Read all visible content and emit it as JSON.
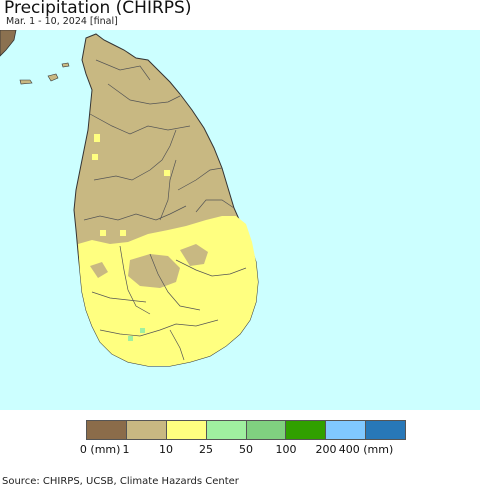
{
  "header": {
    "title": "Precipitation (CHIRPS)",
    "subtitle": "Mar. 1 - 10, 2024 [final]"
  },
  "map": {
    "sea_color": "#ccffff",
    "land_colors": {
      "dry_0_1mm": "#c8b882",
      "moist_10_25mm": "#ffff80",
      "green_25_50mm": "#a0f0a0",
      "mainland_india_lt1": "#8b7150"
    },
    "boundary_color": "#444444"
  },
  "legend": {
    "colors": [
      "#8b6c4a",
      "#c8b882",
      "#ffff80",
      "#a0f0a0",
      "#80d080",
      "#30a000",
      "#80c8ff",
      "#2878b8"
    ],
    "labels": [
      "0 (mm)",
      "1",
      "10",
      "25",
      "50",
      "100",
      "200",
      "400 (mm)"
    ]
  },
  "footer": {
    "source": "Source: CHIRPS, UCSB, Climate Hazards Center"
  }
}
